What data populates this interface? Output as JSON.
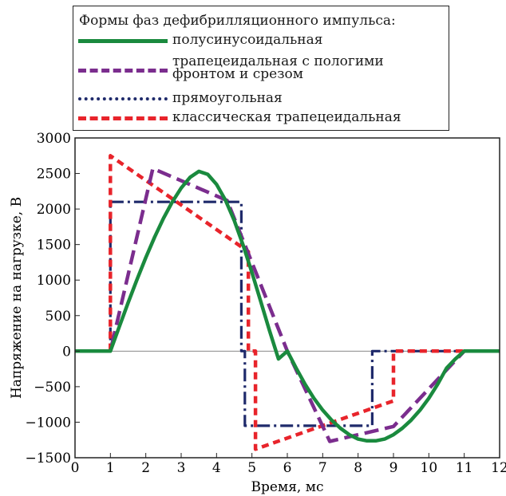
{
  "chart_data": {
    "type": "line",
    "title": "",
    "xlabel": "Время, мс",
    "ylabel": "Напряжение на нагрузке, В",
    "xlim": [
      0,
      12
    ],
    "ylim": [
      -1500,
      3000
    ],
    "xticks": [
      0,
      1,
      2,
      3,
      4,
      5,
      6,
      7,
      8,
      9,
      10,
      11,
      12
    ],
    "yticks": [
      -1500,
      -1000,
      -500,
      0,
      500,
      1000,
      1500,
      2000,
      2500,
      3000
    ],
    "ytick_labels": [
      "−1500",
      "−1000",
      "−500",
      "0",
      "500",
      "1000",
      "1500",
      "2000",
      "2500",
      "3000"
    ],
    "grid": false,
    "zero_line": true,
    "legend": {
      "title": "Формы фаз дефибрилляционного импульса:",
      "placement": "top",
      "entries": [
        {
          "lines": [
            "полусинусоидальная"
          ]
        },
        {
          "lines": [
            "трапецеидальная с пологими",
            "фронтом и срезом"
          ]
        },
        {
          "lines": [
            "прямоугольная"
          ]
        },
        {
          "lines": [
            "классическая трапецеидальная"
          ]
        }
      ]
    },
    "series": [
      {
        "name": "полусинусоидальная",
        "style": "solid",
        "color": "#1a8a3e",
        "x": [
          0,
          1,
          1.25,
          1.5,
          1.75,
          2,
          2.25,
          2.5,
          2.75,
          3,
          3.25,
          3.5,
          3.75,
          4,
          4.25,
          4.5,
          4.75,
          5,
          5.25,
          5.5,
          5.75,
          6,
          6.25,
          6.5,
          6.75,
          7,
          7.25,
          7.5,
          7.75,
          8,
          8.25,
          8.5,
          8.75,
          9,
          9.25,
          9.5,
          9.75,
          10,
          10.25,
          10.5,
          10.75,
          11,
          12
        ],
        "y": [
          0,
          0,
          342,
          680,
          1006,
          1317,
          1606,
          1869,
          2100,
          2295,
          2446,
          2530,
          2488,
          2347,
          2127,
          1838,
          1492,
          1106,
          695,
          284,
          -110,
          0,
          -240,
          -465,
          -663,
          -830,
          -970,
          -1085,
          -1176,
          -1237,
          -1262,
          -1262,
          -1237,
          -1176,
          -1085,
          -970,
          -830,
          -663,
          -465,
          -240,
          -110,
          0,
          0
        ]
      },
      {
        "name": "трапецеидальная с пологими фронтом и срезом",
        "style": "dash",
        "color": "#7b2d8e",
        "x": [
          0,
          1,
          2.2,
          4.3,
          6,
          7.2,
          9,
          11,
          12
        ],
        "y": [
          0,
          0,
          2570,
          2120,
          0,
          -1270,
          -1060,
          0,
          0
        ]
      },
      {
        "name": "прямоугольная",
        "style": "dashdot",
        "color": "#1f2a6b",
        "x": [
          0,
          1,
          1,
          4.7,
          4.7,
          4.8,
          4.8,
          8.4,
          8.4,
          12
        ],
        "y": [
          0,
          0,
          2100,
          2100,
          0,
          0,
          -1050,
          -1050,
          0,
          0
        ]
      },
      {
        "name": "классическая трапецеидальная",
        "style": "shortdash",
        "color": "#e8242b",
        "x": [
          0,
          1,
          1,
          4.9,
          4.9,
          5.1,
          5.1,
          9,
          9,
          12
        ],
        "y": [
          0,
          0,
          2750,
          1400,
          0,
          0,
          -1380,
          -700,
          0,
          0
        ]
      }
    ]
  }
}
